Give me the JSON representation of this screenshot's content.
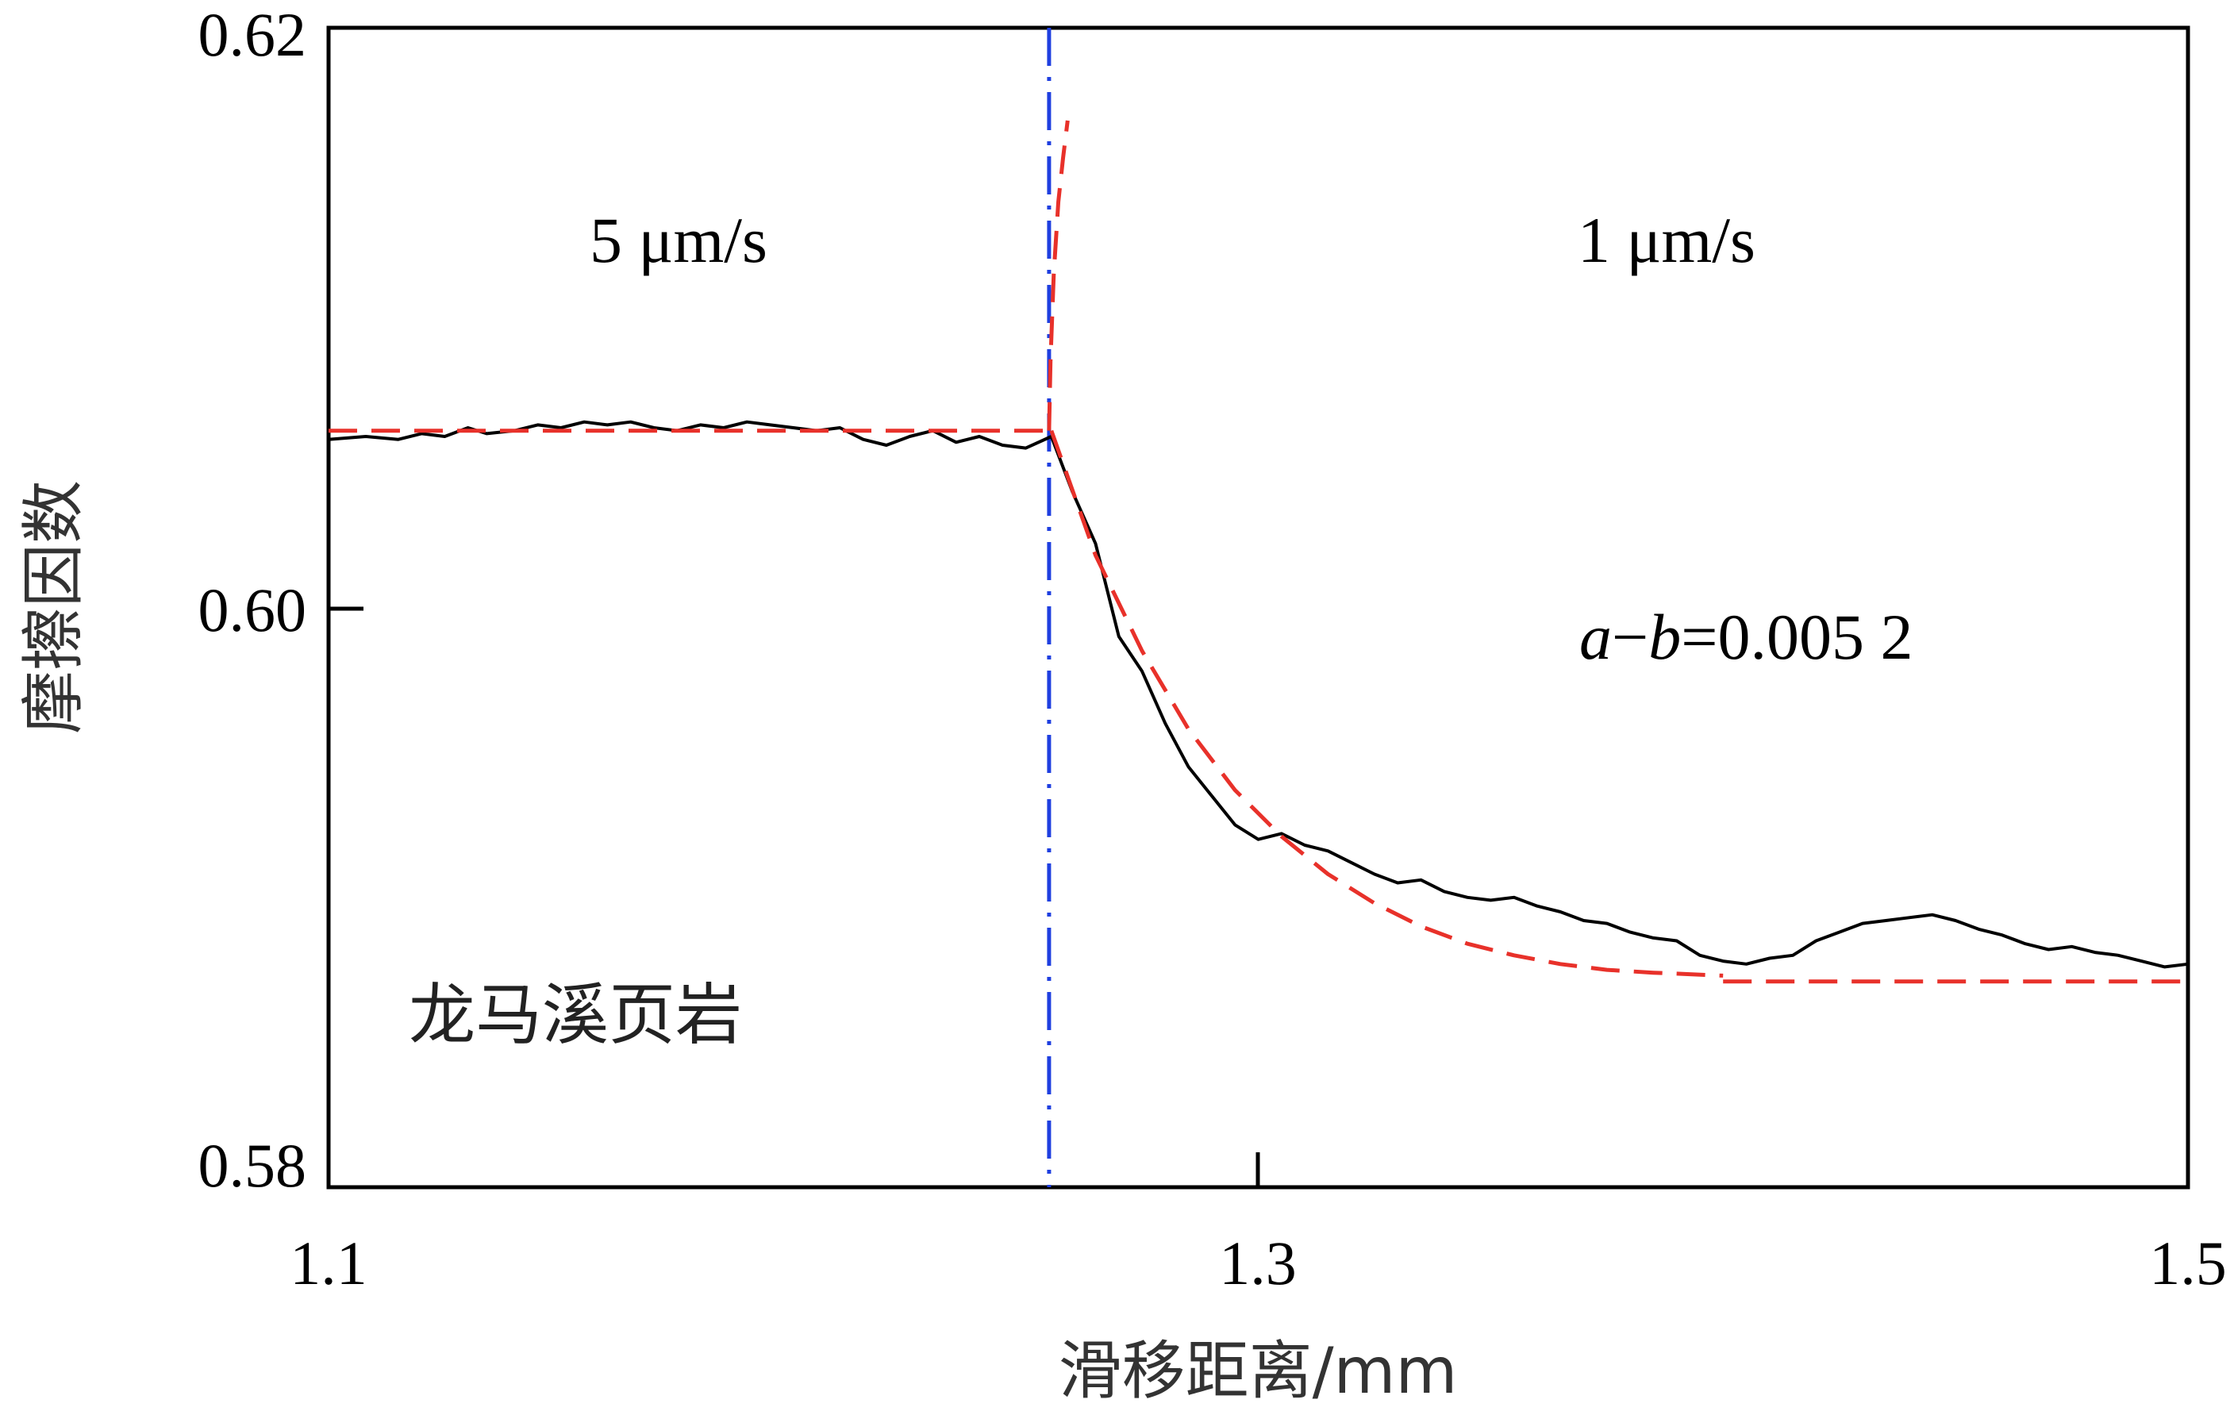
{
  "chart_data": {
    "type": "line",
    "title": "",
    "xlabel": "滑移距离/mm",
    "ylabel": "摩擦因数",
    "xlim": [
      1.1,
      1.5
    ],
    "ylim": [
      0.58,
      0.62
    ],
    "x_ticks": [
      "1.1",
      "1.3",
      "1.5"
    ],
    "y_ticks": [
      "0.58",
      "0.60",
      "0.62"
    ],
    "grid": false,
    "velocity_step_x": 1.255,
    "annotations": {
      "left_velocity": "5 μm/s",
      "right_velocity": "1 μm/s",
      "ab_italic_a": "a",
      "ab_dash": "−",
      "ab_italic_b": "b",
      "ab_value": "=0.005 2",
      "material": "龙马溪页岩"
    },
    "series": [
      {
        "role": "measured",
        "color": "#000000",
        "points": [
          [
            1.1,
            0.6058
          ],
          [
            1.108,
            0.6059
          ],
          [
            1.115,
            0.6058
          ],
          [
            1.12,
            0.606
          ],
          [
            1.125,
            0.6059
          ],
          [
            1.13,
            0.6062
          ],
          [
            1.134,
            0.606
          ],
          [
            1.14,
            0.6061
          ],
          [
            1.145,
            0.6063
          ],
          [
            1.15,
            0.6062
          ],
          [
            1.155,
            0.6064
          ],
          [
            1.16,
            0.6063
          ],
          [
            1.165,
            0.6064
          ],
          [
            1.17,
            0.6062
          ],
          [
            1.175,
            0.6061
          ],
          [
            1.18,
            0.6063
          ],
          [
            1.185,
            0.6062
          ],
          [
            1.19,
            0.6064
          ],
          [
            1.195,
            0.6063
          ],
          [
            1.2,
            0.6062
          ],
          [
            1.205,
            0.6061
          ],
          [
            1.21,
            0.6062
          ],
          [
            1.215,
            0.6058
          ],
          [
            1.22,
            0.6056
          ],
          [
            1.225,
            0.6059
          ],
          [
            1.23,
            0.6061
          ],
          [
            1.235,
            0.6057
          ],
          [
            1.24,
            0.6059
          ],
          [
            1.245,
            0.6056
          ],
          [
            1.25,
            0.6055
          ],
          [
            1.2555,
            0.6059
          ],
          [
            1.26,
            0.604
          ],
          [
            1.265,
            0.6022
          ],
          [
            1.27,
            0.599
          ],
          [
            1.275,
            0.5978
          ],
          [
            1.28,
            0.596
          ],
          [
            1.285,
            0.5945
          ],
          [
            1.29,
            0.5935
          ],
          [
            1.295,
            0.5925
          ],
          [
            1.3,
            0.592
          ],
          [
            1.305,
            0.5922
          ],
          [
            1.31,
            0.5918
          ],
          [
            1.315,
            0.5916
          ],
          [
            1.32,
            0.5912
          ],
          [
            1.325,
            0.5908
          ],
          [
            1.33,
            0.5905
          ],
          [
            1.335,
            0.5906
          ],
          [
            1.34,
            0.5902
          ],
          [
            1.345,
            0.59
          ],
          [
            1.35,
            0.5899
          ],
          [
            1.355,
            0.59
          ],
          [
            1.36,
            0.5897
          ],
          [
            1.365,
            0.5895
          ],
          [
            1.37,
            0.5892
          ],
          [
            1.375,
            0.5891
          ],
          [
            1.38,
            0.5888
          ],
          [
            1.385,
            0.5886
          ],
          [
            1.39,
            0.5885
          ],
          [
            1.395,
            0.588
          ],
          [
            1.4,
            0.5878
          ],
          [
            1.405,
            0.5877
          ],
          [
            1.41,
            0.5879
          ],
          [
            1.415,
            0.588
          ],
          [
            1.42,
            0.5885
          ],
          [
            1.425,
            0.5888
          ],
          [
            1.43,
            0.5891
          ],
          [
            1.435,
            0.5892
          ],
          [
            1.44,
            0.5893
          ],
          [
            1.445,
            0.5894
          ],
          [
            1.45,
            0.5892
          ],
          [
            1.455,
            0.5889
          ],
          [
            1.46,
            0.5887
          ],
          [
            1.465,
            0.5884
          ],
          [
            1.47,
            0.5882
          ],
          [
            1.475,
            0.5883
          ],
          [
            1.48,
            0.5881
          ],
          [
            1.485,
            0.588
          ],
          [
            1.49,
            0.5878
          ],
          [
            1.495,
            0.5876
          ],
          [
            1.5,
            0.5877
          ]
        ]
      },
      {
        "role": "fit-initial-steady",
        "color": "#e8312a",
        "points": [
          [
            1.1,
            0.6061
          ],
          [
            1.2555,
            0.6061
          ]
        ]
      },
      {
        "role": "fit-direct-effect",
        "color": "#e8312a",
        "points": [
          [
            1.255,
            0.6061
          ],
          [
            1.2553,
            0.6085
          ],
          [
            1.256,
            0.6115
          ],
          [
            1.257,
            0.614
          ],
          [
            1.258,
            0.6155
          ],
          [
            1.259,
            0.6168
          ]
        ]
      },
      {
        "role": "fit-evolution",
        "color": "#e8312a",
        "points": [
          [
            1.2555,
            0.6061
          ],
          [
            1.265,
            0.6018
          ],
          [
            1.275,
            0.5985
          ],
          [
            1.285,
            0.5958
          ],
          [
            1.295,
            0.5937
          ],
          [
            1.305,
            0.5921
          ],
          [
            1.315,
            0.5908
          ],
          [
            1.325,
            0.5898
          ],
          [
            1.335,
            0.589
          ],
          [
            1.345,
            0.5884
          ],
          [
            1.355,
            0.588
          ],
          [
            1.365,
            0.5877
          ],
          [
            1.375,
            0.5875
          ],
          [
            1.385,
            0.5874
          ],
          [
            1.4,
            0.5873
          ]
        ]
      },
      {
        "role": "fit-final-steady",
        "color": "#e8312a",
        "points": [
          [
            1.4,
            0.5871
          ],
          [
            1.5,
            0.5871
          ]
        ]
      }
    ]
  }
}
